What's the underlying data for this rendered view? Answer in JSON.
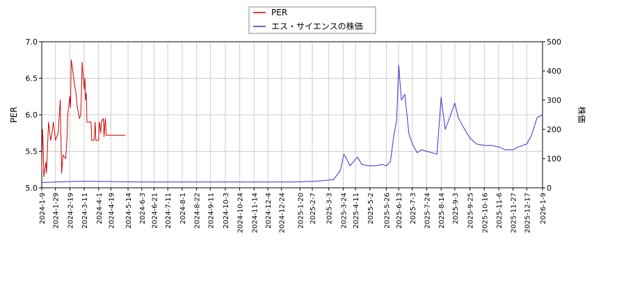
{
  "chart_data": {
    "type": "line",
    "legend": {
      "position": "top-center",
      "items": [
        {
          "label": "PER",
          "color": "#cc0000"
        },
        {
          "label": "エス・サイエンスの株価",
          "color": "#3333cc"
        }
      ]
    },
    "y_left_label": "PER",
    "y_right_label": "株価",
    "y_left_range": [
      5.0,
      7.0
    ],
    "y_left_ticks": [
      "5.0",
      "5.5",
      "6.0",
      "6.5",
      "7.0"
    ],
    "y_right_range": [
      0,
      500
    ],
    "y_right_ticks": [
      "0",
      "100",
      "200",
      "300",
      "400",
      "500"
    ],
    "grid": true,
    "x_range": [
      "2024-01-09",
      "2026-01-09"
    ],
    "x_ticks": [
      "2024-1-9",
      "2024-1-29",
      "2024-2-19",
      "2024-3-11",
      "2024-4-1",
      "2024-4-19",
      "2024-5-14",
      "2024-6-3",
      "2024-6-21",
      "2024-7-11",
      "2024-8-1",
      "2024-8-22",
      "2024-9-11",
      "2024-10-3",
      "2024-10-24",
      "2024-11-14",
      "2024-12-4",
      "2024-12-24",
      "2025-1-20",
      "2025-2-7",
      "2025-3-3",
      "2025-3-24",
      "2025-4-11",
      "2025-5-2",
      "2025-5-26",
      "2025-6-13",
      "2025-7-3",
      "2025-7-24",
      "2025-8-14",
      "2025-9-3",
      "2025-9-25",
      "2025-10-16",
      "2025-11-6",
      "2025-11-27",
      "2025-12-17",
      "2026-1-9"
    ],
    "series": [
      {
        "name": "PER",
        "axis": "left",
        "color": "#cc0000",
        "x": [
          "2024-01-09",
          "2024-01-10",
          "2024-01-11",
          "2024-01-12",
          "2024-01-15",
          "2024-01-16",
          "2024-01-17",
          "2024-01-19",
          "2024-01-22",
          "2024-01-24",
          "2024-01-26",
          "2024-01-29",
          "2024-01-31",
          "2024-02-02",
          "2024-02-05",
          "2024-02-07",
          "2024-02-09",
          "2024-02-13",
          "2024-02-15",
          "2024-02-16",
          "2024-02-19",
          "2024-02-20",
          "2024-02-21",
          "2024-02-22",
          "2024-02-26",
          "2024-02-28",
          "2024-03-01",
          "2024-03-04",
          "2024-03-06",
          "2024-03-07",
          "2024-03-08",
          "2024-03-11",
          "2024-03-12",
          "2024-03-13",
          "2024-03-14",
          "2024-03-15",
          "2024-03-18",
          "2024-03-19",
          "2024-03-21",
          "2024-03-22",
          "2024-03-25",
          "2024-03-26",
          "2024-03-27",
          "2024-03-28",
          "2024-03-29",
          "2024-04-01",
          "2024-04-02",
          "2024-04-03",
          "2024-04-04",
          "2024-04-05",
          "2024-04-08",
          "2024-04-09",
          "2024-04-10",
          "2024-04-11",
          "2024-04-12",
          "2024-04-15",
          "2024-04-16",
          "2024-04-17",
          "2024-04-18",
          "2024-04-19",
          "2024-04-22",
          "2024-04-23",
          "2024-04-24",
          "2024-04-25",
          "2024-04-26",
          "2024-04-30",
          "2024-05-01",
          "2024-05-02",
          "2024-05-07",
          "2024-05-08",
          "2024-05-09",
          "2024-05-10"
        ],
        "y": [
          5.25,
          5.8,
          5.6,
          5.15,
          5.35,
          5.2,
          5.45,
          5.9,
          5.65,
          5.75,
          5.9,
          5.65,
          5.7,
          5.75,
          6.2,
          5.2,
          5.45,
          5.4,
          5.7,
          6.0,
          6.25,
          6.1,
          6.75,
          6.7,
          6.4,
          6.3,
          6.1,
          5.95,
          6.0,
          6.3,
          6.72,
          6.35,
          6.5,
          6.2,
          6.3,
          5.9,
          5.9,
          5.9,
          5.9,
          5.65,
          5.65,
          5.7,
          5.9,
          5.65,
          5.65,
          5.65,
          5.9,
          5.85,
          5.75,
          5.9,
          5.95,
          5.7,
          5.85,
          5.95,
          5.72,
          5.72,
          5.72,
          5.72,
          5.72,
          5.72,
          5.72,
          5.72,
          5.72,
          5.72,
          5.72,
          5.72,
          5.72,
          5.72,
          5.72,
          5.72,
          5.72,
          5.72
        ]
      },
      {
        "name": "エス・サイエンスの株価",
        "axis": "right",
        "color": "#3333cc",
        "x": [
          "2024-01-09",
          "2024-02-01",
          "2024-03-01",
          "2024-04-01",
          "2024-05-01",
          "2024-06-01",
          "2024-07-01",
          "2024-08-01",
          "2024-09-01",
          "2024-10-01",
          "2024-11-01",
          "2024-12-01",
          "2025-01-10",
          "2025-02-10",
          "2025-03-10",
          "2025-03-20",
          "2025-03-25",
          "2025-03-30",
          "2025-04-03",
          "2025-04-08",
          "2025-04-14",
          "2025-04-20",
          "2025-05-01",
          "2025-05-10",
          "2025-05-20",
          "2025-05-26",
          "2025-06-01",
          "2025-06-06",
          "2025-06-10",
          "2025-06-13",
          "2025-06-17",
          "2025-06-22",
          "2025-06-28",
          "2025-07-03",
          "2025-07-10",
          "2025-07-16",
          "2025-07-24",
          "2025-08-01",
          "2025-08-08",
          "2025-08-14",
          "2025-08-20",
          "2025-08-28",
          "2025-09-03",
          "2025-09-08",
          "2025-09-15",
          "2025-09-25",
          "2025-10-05",
          "2025-10-16",
          "2025-10-26",
          "2025-11-06",
          "2025-11-16",
          "2025-11-27",
          "2025-12-05",
          "2025-12-17",
          "2025-12-24",
          "2026-01-01",
          "2026-01-09"
        ],
        "y": [
          18,
          20,
          22,
          22,
          21,
          20,
          20,
          20,
          20,
          20,
          20,
          20,
          20,
          22,
          28,
          60,
          115,
          95,
          75,
          90,
          105,
          80,
          75,
          75,
          80,
          75,
          90,
          180,
          230,
          420,
          300,
          320,
          185,
          150,
          120,
          130,
          125,
          120,
          115,
          310,
          200,
          250,
          290,
          240,
          210,
          170,
          150,
          145,
          145,
          140,
          130,
          130,
          140,
          150,
          180,
          240,
          250
        ]
      }
    ]
  }
}
